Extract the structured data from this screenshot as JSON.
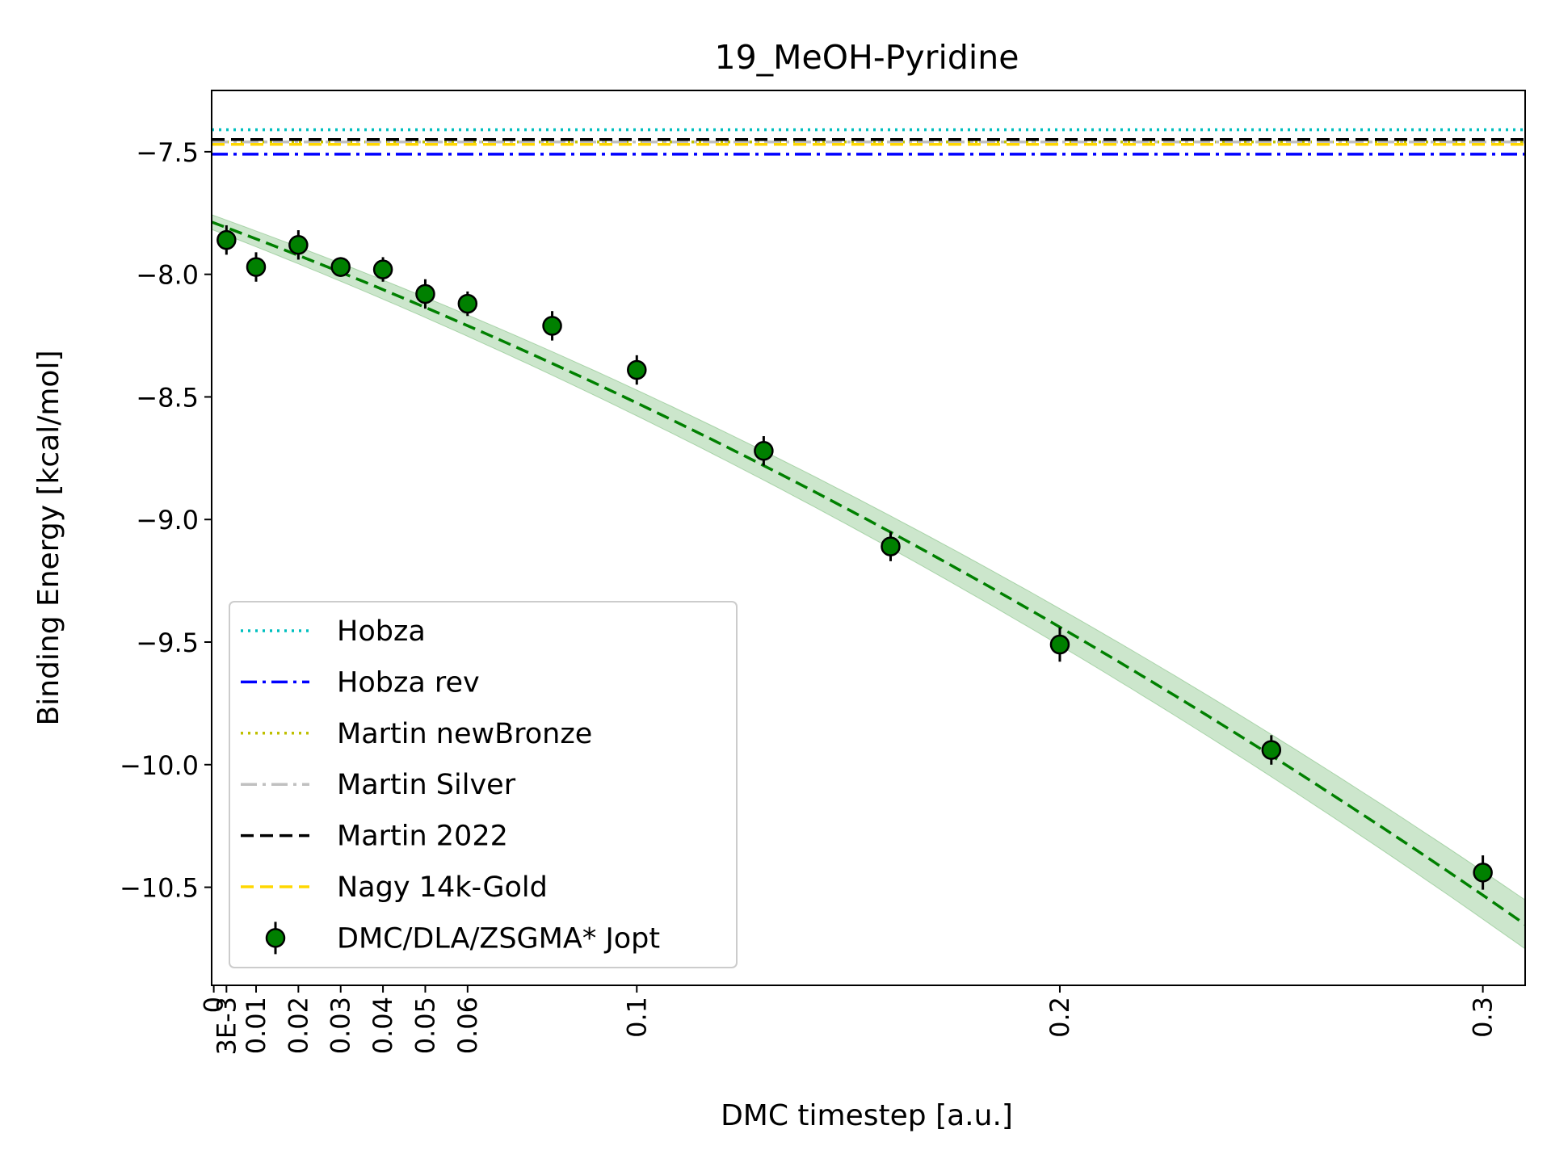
{
  "chart_data": {
    "type": "scatter",
    "title": "19_MeOH-Pyridine",
    "xlabel": "DMC timestep [a.u.]",
    "ylabel": "Binding Energy [kcal/mol]",
    "xlim": [
      -0.0005,
      0.31
    ],
    "ylim": [
      -10.9,
      -7.25
    ],
    "grid": false,
    "legend_position": "lower-left",
    "x_ticks": [
      {
        "value": 0,
        "label": "0"
      },
      {
        "value": 0.003,
        "label": "3E-3"
      },
      {
        "value": 0.01,
        "label": "0.01"
      },
      {
        "value": 0.02,
        "label": "0.02"
      },
      {
        "value": 0.03,
        "label": "0.03"
      },
      {
        "value": 0.04,
        "label": "0.04"
      },
      {
        "value": 0.05,
        "label": "0.05"
      },
      {
        "value": 0.06,
        "label": "0.06"
      },
      {
        "value": 0.1,
        "label": "0.1"
      },
      {
        "value": 0.2,
        "label": "0.2"
      },
      {
        "value": 0.3,
        "label": "0.3"
      }
    ],
    "y_ticks": [
      {
        "value": -7.5,
        "label": "−7.5"
      },
      {
        "value": -8.0,
        "label": "−8.0"
      },
      {
        "value": -8.5,
        "label": "−8.5"
      },
      {
        "value": -9.0,
        "label": "−9.0"
      },
      {
        "value": -9.5,
        "label": "−9.5"
      },
      {
        "value": -10.0,
        "label": "−10.0"
      },
      {
        "value": -10.5,
        "label": "−10.5"
      }
    ],
    "reference_lines": [
      {
        "name": "Hobza",
        "value": -7.41,
        "color": "#00bfbf",
        "style": "dotted"
      },
      {
        "name": "Hobza rev",
        "value": -7.51,
        "color": "#0000ff",
        "style": "dashdot"
      },
      {
        "name": "Martin newBronze",
        "value": -7.46,
        "color": "#bfbf00",
        "style": "dotted"
      },
      {
        "name": "Martin Silver",
        "value": -7.46,
        "color": "#c0c0c0",
        "style": "dashdot"
      },
      {
        "name": "Martin 2022",
        "value": -7.45,
        "color": "#000000",
        "style": "dashed"
      },
      {
        "name": "Nagy 14k-Gold",
        "value": -7.47,
        "color": "#ffd700",
        "style": "dashed"
      }
    ],
    "series": [
      {
        "name": "DMC/DLA/ZSGMA* Jopt",
        "color": "#008000",
        "x": [
          0.003,
          0.01,
          0.02,
          0.03,
          0.04,
          0.05,
          0.06,
          0.08,
          0.1,
          0.13,
          0.16,
          0.2,
          0.25,
          0.3
        ],
        "y": [
          -7.86,
          -7.97,
          -7.88,
          -7.97,
          -7.98,
          -8.08,
          -8.12,
          -8.21,
          -8.39,
          -8.72,
          -9.11,
          -9.51,
          -9.94,
          -10.44
        ],
        "yerr": [
          0.06,
          0.06,
          0.06,
          0.04,
          0.05,
          0.06,
          0.05,
          0.06,
          0.06,
          0.06,
          0.06,
          0.07,
          0.06,
          0.07
        ]
      }
    ],
    "fit": {
      "color": "#008000",
      "style": "dashed",
      "x_start": -0.0005,
      "x_end": 0.31,
      "coefficients": {
        "c0": -7.79,
        "c1": -6.45,
        "c2": -8.97
      },
      "band_halfwidth_at_0": 0.03,
      "band_halfwidth_at_end": 0.1
    }
  }
}
